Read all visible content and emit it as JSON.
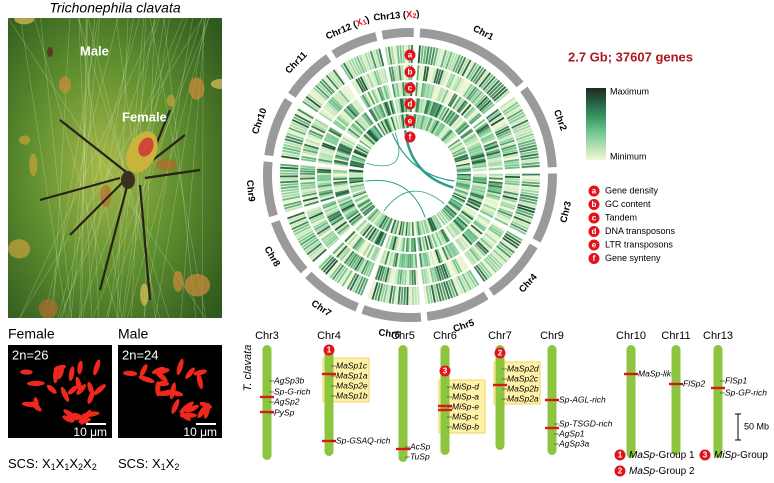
{
  "photo": {
    "title": "Trichonephila clavata",
    "male_label": "Male",
    "female_label": "Female"
  },
  "karyotypes": [
    {
      "sex": "Female",
      "count": "2n=26",
      "scale": "10 μm",
      "scs": [
        "SCS: ",
        "X",
        "1",
        "X",
        "1",
        "X",
        "2",
        "X",
        "2"
      ]
    },
    {
      "sex": "Male",
      "count": "2n=24",
      "scale": "10 μm",
      "scs": [
        "SCS: ",
        "X",
        "1",
        "X",
        "2"
      ]
    }
  ],
  "circos": {
    "stats": "2.7 Gb; 37607 genes",
    "chromosomes": [
      [
        "Chr1"
      ],
      [
        "Chr2"
      ],
      [
        "Chr3"
      ],
      [
        "Chr4"
      ],
      [
        "Chr5"
      ],
      [
        "Chr6"
      ],
      [
        "Chr7"
      ],
      [
        "Chr8"
      ],
      [
        "Chr9"
      ],
      [
        "Chr10"
      ],
      [
        "Chr11"
      ],
      [
        "Chr12 (",
        "X",
        "1",
        ")"
      ],
      [
        "Chr13 (",
        "X",
        "2",
        ")"
      ]
    ],
    "track_keys": [
      "a",
      "b",
      "c",
      "d",
      "e",
      "f"
    ],
    "colorbar": {
      "max": "Maximum",
      "min": "Minimum"
    },
    "legend": [
      {
        "key": "a",
        "label": "Gene density"
      },
      {
        "key": "b",
        "label": "GC content"
      },
      {
        "key": "c",
        "label": "Tandem"
      },
      {
        "key": "d",
        "label": "DNA transposons"
      },
      {
        "key": "e",
        "label": "LTR transposons"
      },
      {
        "key": "f",
        "label": "Gene synteny"
      }
    ]
  },
  "gene_map": {
    "species": "T. clavata",
    "chromosomes": [
      {
        "name": "Chr3",
        "genes": [
          "AgSp3b",
          "Sp-G-rich",
          "AgSp2",
          "PySp"
        ]
      },
      {
        "name": "Chr4",
        "group": "1",
        "genes": [
          "MaSp1c",
          "MaSp1a",
          "MaSp2e",
          "MaSp1b",
          "Sp-GSAQ-rich"
        ]
      },
      {
        "name": "Chr5",
        "genes": [
          "AcSp",
          "TuSp"
        ]
      },
      {
        "name": "Chr6",
        "group": "3",
        "genes": [
          "MiSp-d",
          "MiSp-a",
          "MiSp-e",
          "MiSp-c",
          "MiSp-b"
        ]
      },
      {
        "name": "Chr7",
        "group": "2",
        "genes": [
          "MaSp2d",
          "MaSp2c",
          "MaSp2b",
          "MaSp2a"
        ]
      },
      {
        "name": "Chr9",
        "genes": [
          "Sp-AGL-rich",
          "Sp-TSGD-rich",
          "AgSp1",
          "AgSp3a"
        ]
      },
      {
        "name": "Chr10",
        "genes": [
          "MaSp-like"
        ]
      },
      {
        "name": "Chr11",
        "genes": [
          "FlSp2"
        ]
      },
      {
        "name": "Chr13",
        "genes": [
          "FlSp1",
          "Sp-GP-rich"
        ]
      }
    ],
    "scale": "50 Mb",
    "groups": [
      {
        "key": "1",
        "parts": [
          "MaSp",
          "-Group 1"
        ]
      },
      {
        "key": "2",
        "parts": [
          "MaSp",
          "-Group 2"
        ]
      },
      {
        "key": "3",
        "parts": [
          "MiSp",
          "-Group"
        ]
      }
    ]
  }
}
